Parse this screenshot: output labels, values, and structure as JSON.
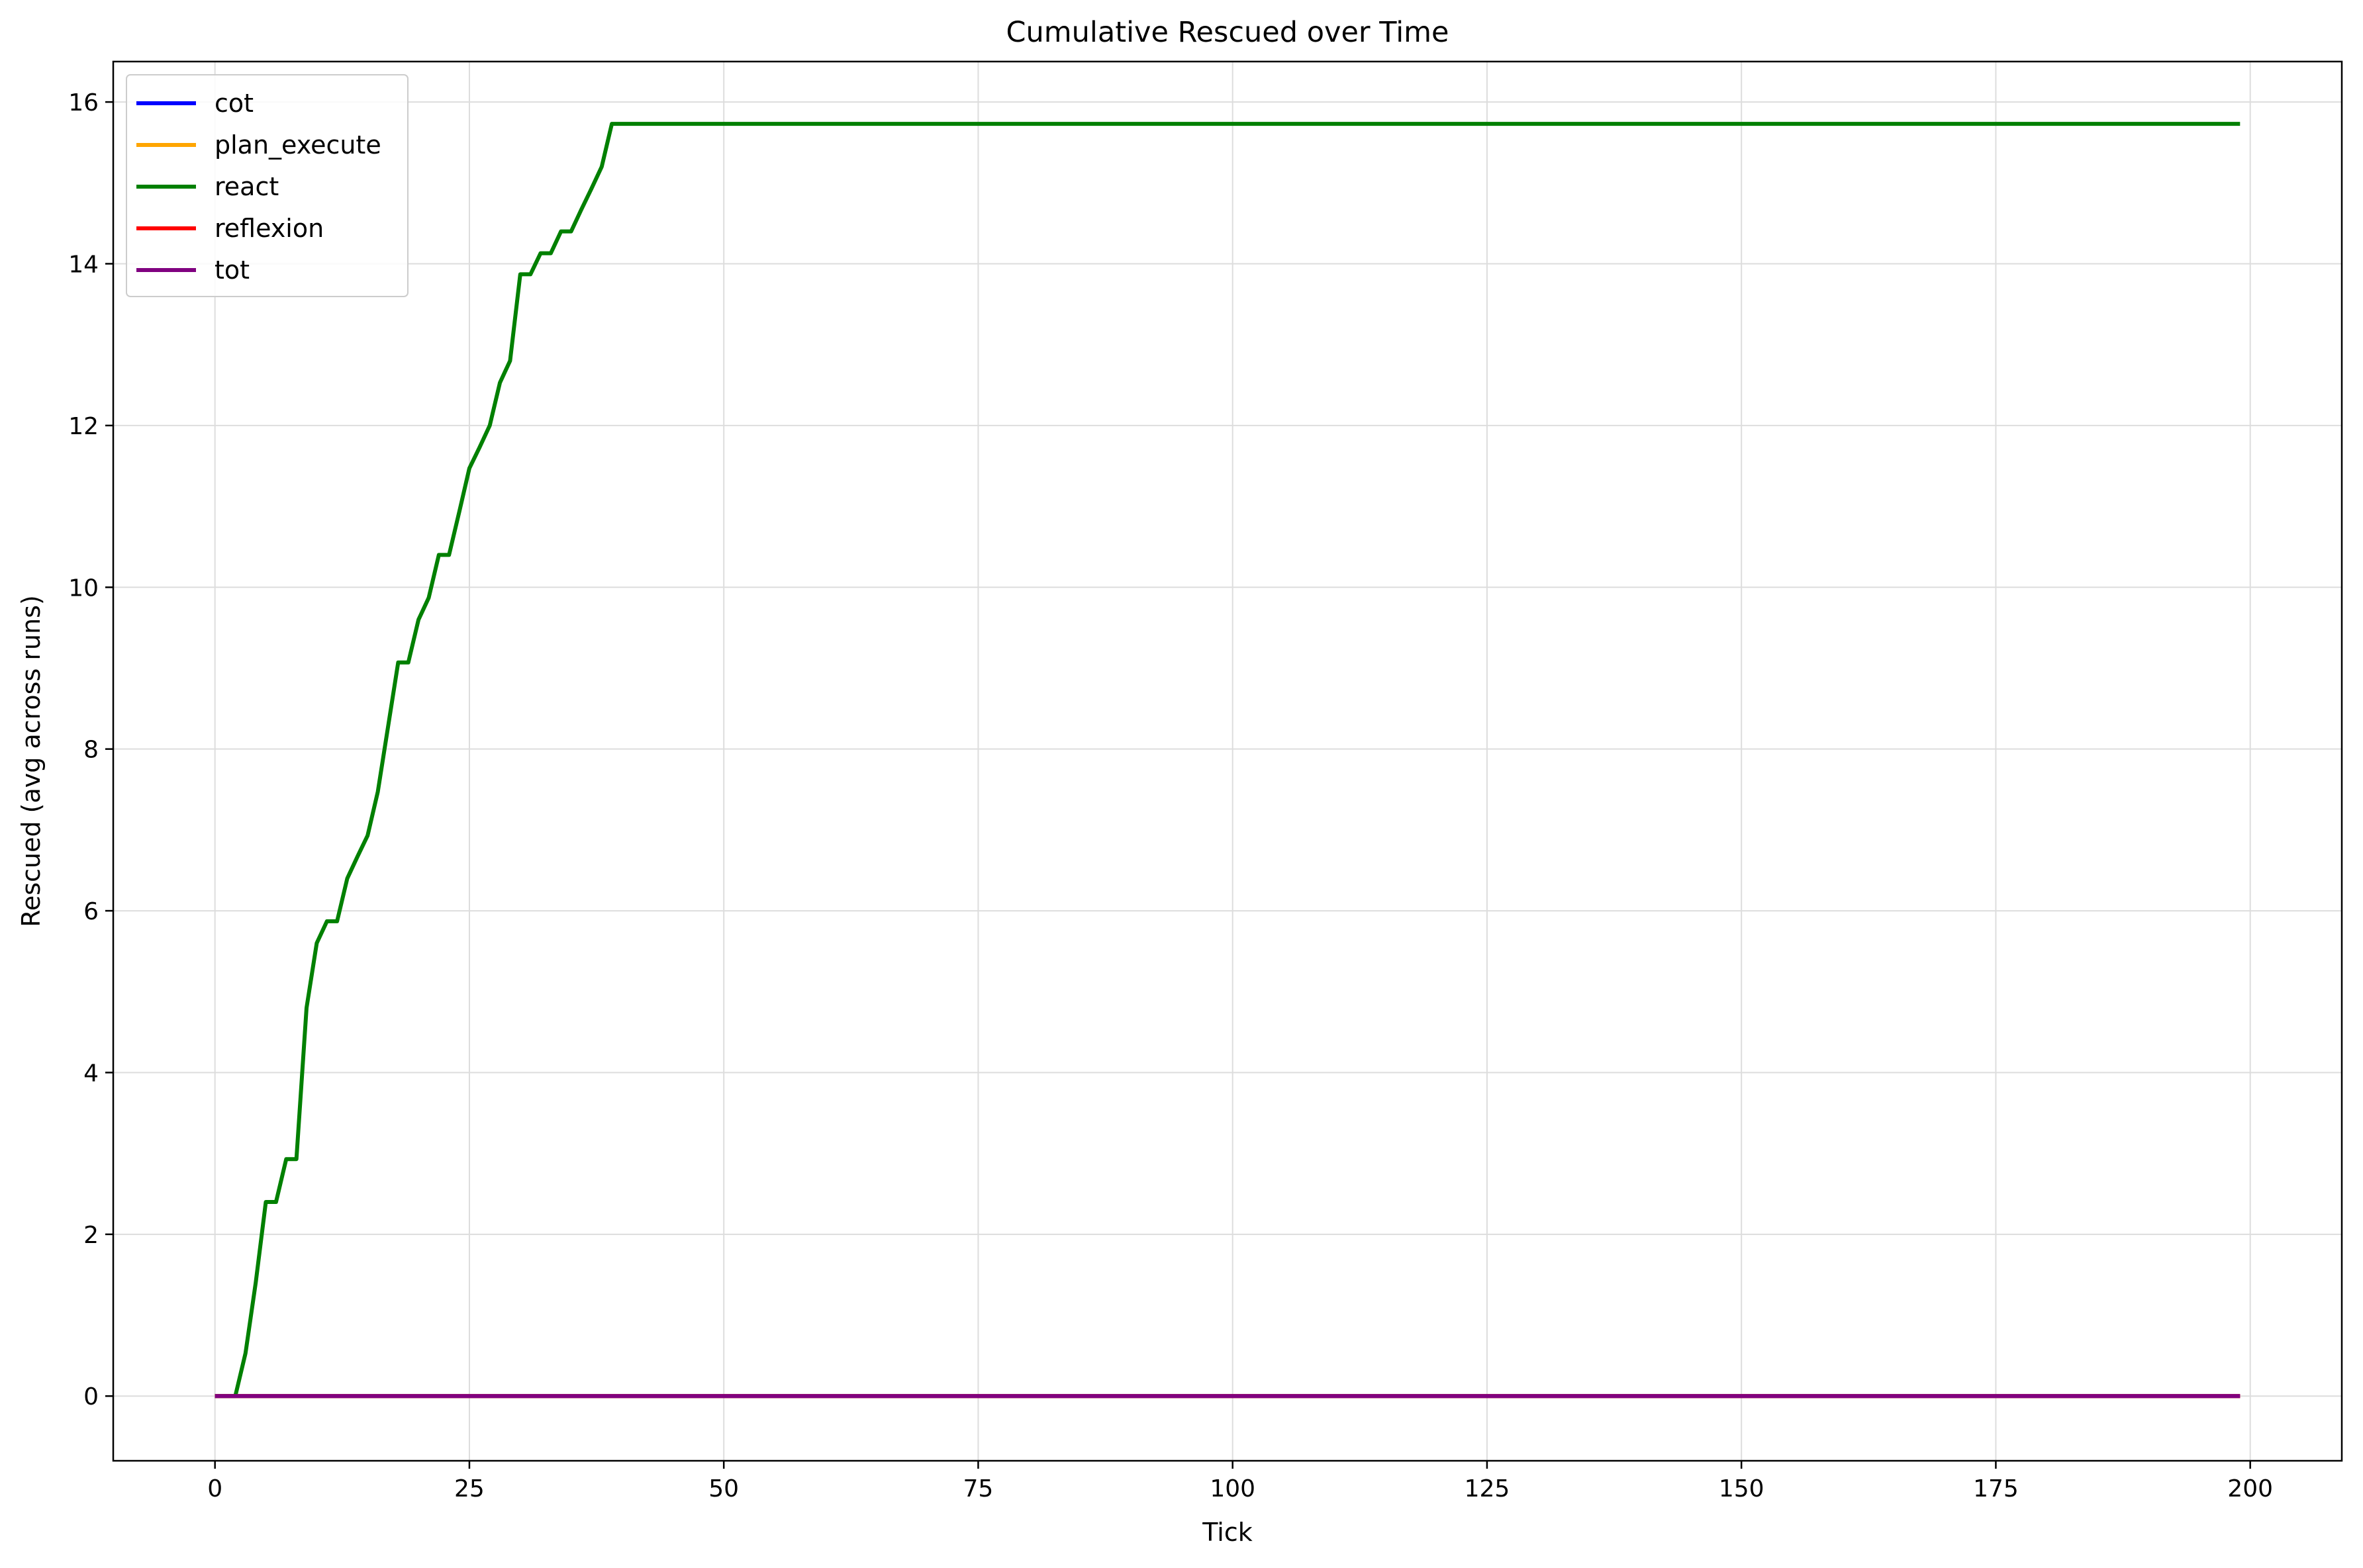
{
  "chart_data": {
    "type": "line",
    "title": "Cumulative Rescued over Time",
    "xlabel": "Tick",
    "ylabel": "Rescued (avg across runs)",
    "xlim": [
      -10,
      209
    ],
    "ylim": [
      -0.8,
      16.5
    ],
    "xticks": [
      0,
      25,
      50,
      75,
      100,
      125,
      150,
      175,
      200
    ],
    "yticks": [
      0,
      2,
      4,
      6,
      8,
      10,
      12,
      14,
      16
    ],
    "grid": true,
    "legend_position": "upper-left",
    "series": [
      {
        "name": "cot",
        "color": "#0000ff",
        "points": [
          [
            0,
            0
          ],
          [
            199,
            0
          ]
        ]
      },
      {
        "name": "plan_execute",
        "color": "#ffa500",
        "points": [
          [
            0,
            0
          ],
          [
            199,
            0
          ]
        ]
      },
      {
        "name": "react",
        "color": "#008000",
        "points": [
          [
            0,
            0
          ],
          [
            1,
            0
          ],
          [
            2,
            0
          ],
          [
            3,
            0.53
          ],
          [
            4,
            1.4
          ],
          [
            5,
            2.4
          ],
          [
            6,
            2.4
          ],
          [
            7,
            2.93
          ],
          [
            8,
            2.93
          ],
          [
            9,
            4.8
          ],
          [
            10,
            5.6
          ],
          [
            11,
            5.87
          ],
          [
            12,
            5.87
          ],
          [
            13,
            6.4
          ],
          [
            14,
            6.67
          ],
          [
            15,
            6.93
          ],
          [
            16,
            7.47
          ],
          [
            17,
            8.27
          ],
          [
            18,
            9.07
          ],
          [
            19,
            9.07
          ],
          [
            20,
            9.6
          ],
          [
            21,
            9.87
          ],
          [
            22,
            10.4
          ],
          [
            23,
            10.4
          ],
          [
            24,
            10.93
          ],
          [
            25,
            11.47
          ],
          [
            26,
            11.73
          ],
          [
            27,
            12.0
          ],
          [
            28,
            12.53
          ],
          [
            29,
            12.8
          ],
          [
            30,
            13.87
          ],
          [
            31,
            13.87
          ],
          [
            32,
            14.13
          ],
          [
            33,
            14.13
          ],
          [
            34,
            14.4
          ],
          [
            35,
            14.4
          ],
          [
            36,
            14.67
          ],
          [
            37,
            14.93
          ],
          [
            38,
            15.2
          ],
          [
            39,
            15.73
          ],
          [
            50,
            15.73
          ],
          [
            100,
            15.73
          ],
          [
            150,
            15.73
          ],
          [
            199,
            15.73
          ]
        ]
      },
      {
        "name": "reflexion",
        "color": "#ff0000",
        "points": [
          [
            0,
            0
          ],
          [
            199,
            0
          ]
        ]
      },
      {
        "name": "tot",
        "color": "#800080",
        "points": [
          [
            0,
            0
          ],
          [
            199,
            0
          ]
        ]
      }
    ]
  }
}
